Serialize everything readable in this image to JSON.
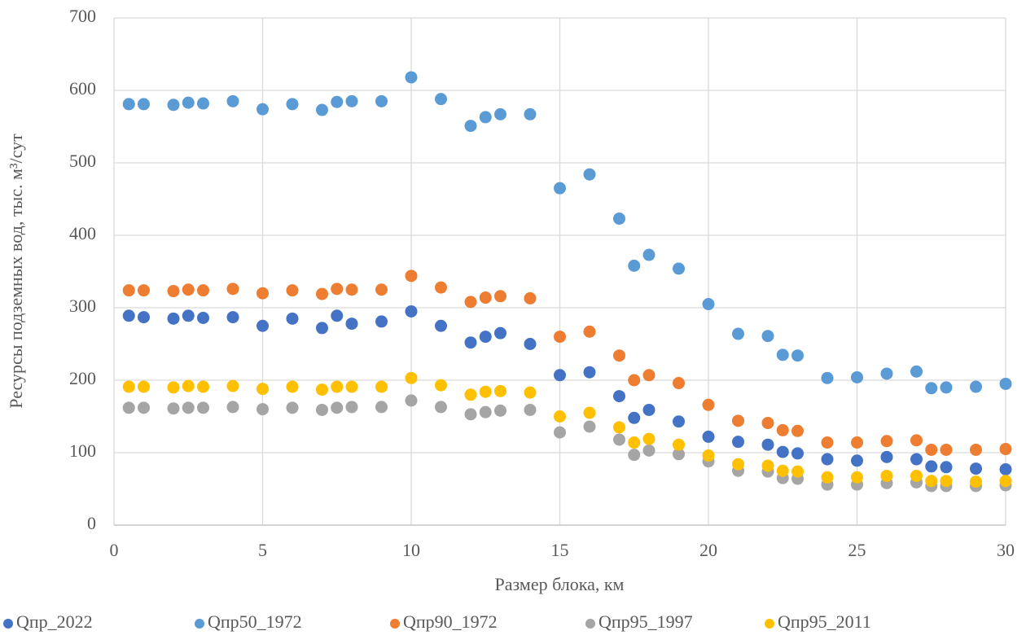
{
  "chart_data": {
    "type": "scatter",
    "x_label": "Размер блока, км",
    "y_label": "Ресурсы подземных вод, тыс. м³/сут",
    "x": [
      0.5,
      1,
      2,
      2.5,
      3,
      4,
      5,
      6,
      7,
      7.5,
      8,
      9,
      10,
      11,
      12,
      12.5,
      13,
      14,
      15,
      16,
      17,
      17.5,
      18,
      19,
      20,
      21,
      22,
      22.5,
      23,
      24,
      25,
      26,
      27,
      27.5,
      28,
      29,
      30
    ],
    "series": [
      {
        "name": "Qпр_2022",
        "color": "#4472c4",
        "values": [
          289,
          287,
          285,
          289,
          286,
          287,
          275,
          285,
          272,
          289,
          278,
          281,
          295,
          275,
          252,
          260,
          265,
          250,
          207,
          211,
          178,
          148,
          159,
          143,
          122,
          115,
          111,
          101,
          99,
          91,
          89,
          94,
          91,
          81,
          80,
          78,
          77
        ]
      },
      {
        "name": "Qпр50_1972",
        "color": "#5b9bd5",
        "values": [
          581,
          581,
          580,
          583,
          582,
          585,
          574,
          581,
          573,
          584,
          585,
          585,
          618,
          588,
          551,
          563,
          567,
          567,
          465,
          484,
          423,
          358,
          373,
          354,
          305,
          264,
          261,
          235,
          234,
          203,
          204,
          209,
          212,
          189,
          190,
          191,
          195
        ]
      },
      {
        "name": "Qпр90_1972",
        "color": "#ed7d31",
        "values": [
          324,
          324,
          323,
          325,
          324,
          326,
          320,
          324,
          319,
          326,
          325,
          325,
          344,
          328,
          308,
          314,
          316,
          313,
          260,
          267,
          234,
          200,
          207,
          196,
          166,
          144,
          141,
          131,
          130,
          114,
          114,
          116,
          117,
          104,
          104,
          104,
          105
        ]
      },
      {
        "name": "Qпр95_1997",
        "color": "#a5a5a5",
        "values": [
          162,
          162,
          161,
          162,
          162,
          163,
          160,
          162,
          159,
          162,
          163,
          163,
          172,
          163,
          153,
          156,
          158,
          159,
          128,
          136,
          118,
          97,
          103,
          98,
          88,
          75,
          74,
          65,
          64,
          56,
          56,
          58,
          59,
          54,
          54,
          54,
          55
        ]
      },
      {
        "name": "Qпр95_2011",
        "color": "#ffc000",
        "values": [
          191,
          191,
          190,
          192,
          191,
          192,
          188,
          191,
          187,
          191,
          191,
          191,
          203,
          193,
          180,
          184,
          185,
          183,
          150,
          155,
          135,
          114,
          119,
          111,
          96,
          84,
          82,
          75,
          74,
          66,
          66,
          68,
          68,
          61,
          61,
          60,
          61
        ]
      }
    ],
    "xlim": [
      0,
      30
    ],
    "xticks": [
      0,
      5,
      10,
      15,
      20,
      25,
      30
    ],
    "ylim": [
      0,
      700
    ],
    "yticks": [
      0,
      100,
      200,
      300,
      400,
      500,
      600,
      700
    ],
    "grid": true,
    "legend": "bottom"
  }
}
